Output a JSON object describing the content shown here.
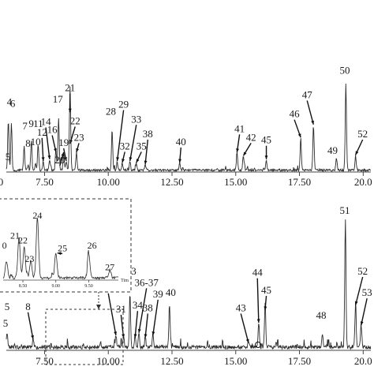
{
  "chart_data": [
    {
      "type": "line",
      "panel": "top",
      "xlim": [
        6.0,
        20.3
      ],
      "x_ticks": [
        "7.50",
        "10.00",
        "12.50",
        "15.00",
        "17.50",
        "20.0"
      ],
      "x_tick_values": [
        7.5,
        10.0,
        12.5,
        15.0,
        17.5,
        20.0
      ],
      "left_cut_tick": "0",
      "left_cut_label": "5",
      "peaks": [
        {
          "label": "4",
          "x": 6.08,
          "h": 0.57,
          "lx": 6.12,
          "lh": 0.77,
          "arrow": false
        },
        {
          "label": "6",
          "x": 6.2,
          "h": 0.53,
          "lx": 6.25,
          "lh": 0.75,
          "arrow": false
        },
        {
          "label": "7",
          "x": 6.7,
          "h": 0.27,
          "lx": 6.73,
          "lh": 0.49,
          "arrow": false
        },
        {
          "label": "8",
          "x": 6.85,
          "h": 0.06,
          "lx": 6.85,
          "lh": 0.29,
          "arrow": false
        },
        {
          "label": "9",
          "x": 6.98,
          "h": 0.31,
          "lx": 6.98,
          "lh": 0.52,
          "arrow": false
        },
        {
          "label": "10",
          "x": 7.15,
          "h": 0.07,
          "lx": 7.15,
          "lh": 0.31,
          "arrow": false
        },
        {
          "label": "11",
          "x": 7.25,
          "h": 0.3,
          "lx": 7.25,
          "lh": 0.52,
          "arrow": false
        },
        {
          "label": "12",
          "x": 7.45,
          "h": 0.1,
          "lx": 7.4,
          "lh": 0.42,
          "arrow": true
        },
        {
          "label": "14",
          "x": 7.7,
          "h": 0.12,
          "lx": 7.55,
          "lh": 0.54,
          "arrow": true
        },
        {
          "label": "16",
          "x": 7.95,
          "h": 0.2,
          "lx": 7.8,
          "lh": 0.45,
          "arrow": true
        },
        {
          "label": "17",
          "x": 8.05,
          "h": 0.6,
          "lx": 8.02,
          "lh": 0.8,
          "arrow": false
        },
        {
          "label": "19",
          "x": 8.35,
          "h": 0.1,
          "lx": 8.25,
          "lh": 0.3,
          "arrow": true
        },
        {
          "label": "20",
          "x": 8.25,
          "h": 0.2,
          "lx": 8.1,
          "lh": 0.1,
          "arrow": true
        },
        {
          "label": "21",
          "x": 8.5,
          "h": 0.66,
          "lx": 8.5,
          "lh": 0.93,
          "arrow": true
        },
        {
          "label": "22",
          "x": 8.5,
          "h": 0.3,
          "lx": 8.7,
          "lh": 0.55,
          "arrow": true
        },
        {
          "label": "23",
          "x": 8.75,
          "h": 0.2,
          "lx": 8.85,
          "lh": 0.36,
          "arrow": true
        },
        {
          "label": "28",
          "x": 10.15,
          "h": 0.47,
          "lx": 10.1,
          "lh": 0.66,
          "arrow": false
        },
        {
          "label": "29",
          "x": 10.35,
          "h": 0.1,
          "lx": 10.6,
          "lh": 0.74,
          "arrow": true
        },
        {
          "label": "32",
          "x": 10.55,
          "h": 0.08,
          "lx": 10.65,
          "lh": 0.26,
          "arrow": true
        },
        {
          "label": "33",
          "x": 10.85,
          "h": 0.1,
          "lx": 11.1,
          "lh": 0.57,
          "arrow": true
        },
        {
          "label": "35",
          "x": 11.1,
          "h": 0.08,
          "lx": 11.3,
          "lh": 0.26,
          "arrow": true
        },
        {
          "label": "38",
          "x": 11.45,
          "h": 0.06,
          "lx": 11.55,
          "lh": 0.4,
          "arrow": true
        },
        {
          "label": "40",
          "x": 12.8,
          "h": 0.08,
          "lx": 12.85,
          "lh": 0.31,
          "arrow": true
        },
        {
          "label": "41",
          "x": 15.05,
          "h": 0.2,
          "lx": 15.15,
          "lh": 0.46,
          "arrow": true
        },
        {
          "label": "42",
          "x": 15.3,
          "h": 0.16,
          "lx": 15.6,
          "lh": 0.36,
          "arrow": true
        },
        {
          "label": "45",
          "x": 16.2,
          "h": 0.12,
          "lx": 16.2,
          "lh": 0.33,
          "arrow": true
        },
        {
          "label": "46",
          "x": 17.55,
          "h": 0.37,
          "lx": 17.3,
          "lh": 0.63,
          "arrow": true
        },
        {
          "label": "47",
          "x": 18.05,
          "h": 0.52,
          "lx": 17.8,
          "lh": 0.85,
          "arrow": true
        },
        {
          "label": "49",
          "x": 18.95,
          "h": 0.14,
          "lx": 18.8,
          "lh": 0.21,
          "arrow": false
        },
        {
          "label": "50",
          "x": 19.32,
          "h": 1.0,
          "lx": 19.28,
          "lh": 1.13,
          "arrow": false
        },
        {
          "label": "52",
          "x": 19.7,
          "h": 0.17,
          "lx": 19.98,
          "lh": 0.4,
          "arrow": true
        }
      ]
    },
    {
      "type": "line",
      "panel": "bottom",
      "xlim": [
        6.0,
        20.3
      ],
      "x_ticks": [
        "7.50",
        "10.00",
        "12.50",
        "15.00",
        "17.50",
        "20.0"
      ],
      "x_tick_values": [
        7.5,
        10.0,
        12.5,
        15.0,
        17.5,
        20.0
      ],
      "left_cut_label": "5",
      "peaks": [
        {
          "label": "5",
          "x": 6.03,
          "h": 0.12,
          "lx": 6.03,
          "lh": 0.32,
          "arrow": false
        },
        {
          "label": "8",
          "x": 7.05,
          "h": 0.07,
          "lx": 6.85,
          "lh": 0.32,
          "arrow": true
        },
        {
          "label": "30",
          "x": 10.3,
          "h": 0.1,
          "lx": 10.0,
          "lh": 0.47,
          "arrow": true
        },
        {
          "label": "31",
          "x": 10.6,
          "h": 0.08,
          "lx": 10.5,
          "lh": 0.3,
          "arrow": true
        },
        {
          "label": "33",
          "x": 10.85,
          "h": 0.42,
          "lx": 10.9,
          "lh": 0.6,
          "arrow": false
        },
        {
          "label": "34",
          "x": 11.05,
          "h": 0.08,
          "lx": 11.15,
          "lh": 0.33,
          "arrow": true
        },
        {
          "label": "36-37",
          "x": 11.2,
          "h": 0.12,
          "lx": 11.5,
          "lh": 0.51,
          "arrow": true
        },
        {
          "label": "38",
          "x": 11.45,
          "h": 0.08,
          "lx": 11.55,
          "lh": 0.31,
          "arrow": true
        },
        {
          "label": "39",
          "x": 11.75,
          "h": 0.1,
          "lx": 11.95,
          "lh": 0.42,
          "arrow": true
        },
        {
          "label": "40",
          "x": 12.4,
          "h": 0.35,
          "lx": 12.45,
          "lh": 0.43,
          "arrow": false
        },
        {
          "label": "43",
          "x": 15.5,
          "h": 0.04,
          "lx": 15.2,
          "lh": 0.31,
          "arrow": true
        },
        {
          "label": "44",
          "x": 15.9,
          "h": 0.2,
          "lx": 15.85,
          "lh": 0.59,
          "arrow": true
        },
        {
          "label": "45",
          "x": 16.15,
          "h": 0.3,
          "lx": 16.2,
          "lh": 0.45,
          "arrow": true
        },
        {
          "label": "48",
          "x": 18.4,
          "h": 0.1,
          "lx": 18.35,
          "lh": 0.25,
          "arrow": false
        },
        {
          "label": "51",
          "x": 19.3,
          "h": 1.0,
          "lx": 19.28,
          "lh": 1.08,
          "arrow": false
        },
        {
          "label": "52",
          "x": 19.7,
          "h": 0.34,
          "lx": 19.98,
          "lh": 0.6,
          "arrow": true
        },
        {
          "label": "53",
          "x": 19.92,
          "h": 0.18,
          "lx": 20.15,
          "lh": 0.43,
          "arrow": true
        }
      ]
    },
    {
      "type": "line",
      "panel": "inset",
      "x_ticks": [
        "8.50",
        "9.00",
        "9.50"
      ],
      "x_tick_values": [
        8.5,
        9.0,
        9.5
      ],
      "xlim": [
        8.2,
        9.95
      ],
      "xlabel": "Tim",
      "peaks": [
        {
          "label": "0",
          "x": 8.25,
          "h": 0.25,
          "lx": 8.22,
          "lh": 0.47,
          "arrow": false
        },
        {
          "label": "21",
          "x": 8.44,
          "h": 0.6,
          "lx": 8.38,
          "lh": 0.62,
          "arrow": false
        },
        {
          "label": "22",
          "x": 8.52,
          "h": 0.45,
          "lx": 8.5,
          "lh": 0.55,
          "arrow": false
        },
        {
          "label": "23",
          "x": 8.62,
          "h": 0.25,
          "lx": 8.6,
          "lh": 0.27,
          "arrow": false
        },
        {
          "label": "24",
          "x": 8.72,
          "h": 0.88,
          "lx": 8.72,
          "lh": 0.92,
          "arrow": false
        },
        {
          "label": "25",
          "x": 9.0,
          "h": 0.38,
          "lx": 9.1,
          "lh": 0.43,
          "arrow": true
        },
        {
          "label": "26",
          "x": 9.5,
          "h": 0.36,
          "lx": 9.55,
          "lh": 0.47,
          "arrow": false
        },
        {
          "label": "27",
          "x": 9.82,
          "h": 0.12,
          "lx": 9.82,
          "lh": 0.15,
          "arrow": false
        }
      ]
    }
  ]
}
